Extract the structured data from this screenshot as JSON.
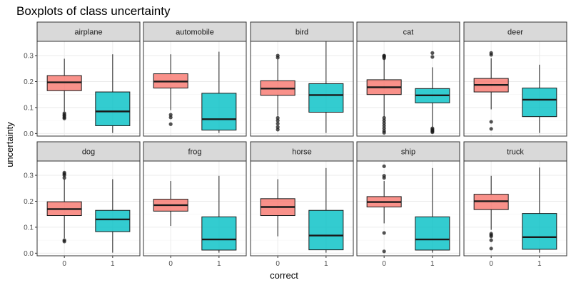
{
  "chart_data": {
    "type": "boxplot",
    "title": "Boxplots of class uncertainty",
    "xlabel": "correct",
    "ylabel": "uncertainty",
    "x_categories": [
      "0",
      "1"
    ],
    "ylim": [
      -0.01,
      0.355
    ],
    "y_ticks": [
      0.0,
      0.1,
      0.2,
      0.3
    ],
    "y_tick_labels": [
      "0.0",
      "0.1",
      "0.2",
      "0.3"
    ],
    "facet_layout": {
      "rows": 2,
      "cols": 5
    },
    "grid": true,
    "colors": {
      "0": "#F8766D",
      "1": "#00BFC4",
      "strip_fill": "#d9d9d9",
      "panel_border": "#333333",
      "grid_major": "#ebebeb",
      "median": "#1a1a1a"
    },
    "facets": [
      {
        "name": "airplane",
        "boxes": [
          {
            "x": "0",
            "whisker_low": 0.085,
            "q1": 0.165,
            "median": 0.197,
            "q3": 0.223,
            "whisker_high": 0.288,
            "outliers": [
              0.078,
              0.072,
              0.068,
              0.062,
              0.058
            ]
          },
          {
            "x": "1",
            "whisker_low": 0.002,
            "q1": 0.03,
            "median": 0.085,
            "q3": 0.16,
            "whisker_high": 0.305,
            "outliers": []
          }
        ]
      },
      {
        "name": "automobile",
        "boxes": [
          {
            "x": "0",
            "whisker_low": 0.09,
            "q1": 0.175,
            "median": 0.2,
            "q3": 0.23,
            "whisker_high": 0.305,
            "outliers": [
              0.072,
              0.062,
              0.036
            ]
          },
          {
            "x": "1",
            "whisker_low": 0.002,
            "q1": 0.013,
            "median": 0.055,
            "q3": 0.155,
            "whisker_high": 0.315,
            "outliers": []
          }
        ]
      },
      {
        "name": "bird",
        "boxes": [
          {
            "x": "0",
            "whisker_low": 0.068,
            "q1": 0.147,
            "median": 0.173,
            "q3": 0.203,
            "whisker_high": 0.285,
            "outliers": [
              0.3,
              0.292,
              0.06,
              0.05,
              0.038,
              0.025,
              0.015
            ]
          },
          {
            "x": "1",
            "whisker_low": 0.002,
            "q1": 0.082,
            "median": 0.148,
            "q3": 0.192,
            "whisker_high": 0.355,
            "outliers": []
          }
        ]
      },
      {
        "name": "cat",
        "boxes": [
          {
            "x": "0",
            "whisker_low": 0.065,
            "q1": 0.15,
            "median": 0.178,
            "q3": 0.207,
            "whisker_high": 0.29,
            "outliers": [
              0.3,
              0.298,
              0.295,
              0.29,
              0.06,
              0.05,
              0.04,
              0.03,
              0.02,
              0.01,
              0.003
            ]
          },
          {
            "x": "1",
            "whisker_low": 0.025,
            "q1": 0.118,
            "median": 0.147,
            "q3": 0.173,
            "whisker_high": 0.255,
            "outliers": [
              0.31,
              0.295,
              0.02,
              0.015,
              0.012,
              0.008,
              0.005
            ]
          }
        ]
      },
      {
        "name": "deer",
        "boxes": [
          {
            "x": "0",
            "whisker_low": 0.093,
            "q1": 0.16,
            "median": 0.187,
            "q3": 0.212,
            "whisker_high": 0.29,
            "outliers": [
              0.31,
              0.303,
              0.045,
              0.018
            ]
          },
          {
            "x": "1",
            "whisker_low": 0.002,
            "q1": 0.065,
            "median": 0.13,
            "q3": 0.175,
            "whisker_high": 0.265,
            "outliers": []
          }
        ]
      },
      {
        "name": "dog",
        "boxes": [
          {
            "x": "0",
            "whisker_low": 0.058,
            "q1": 0.145,
            "median": 0.17,
            "q3": 0.198,
            "whisker_high": 0.285,
            "outliers": [
              0.31,
              0.305,
              0.3,
              0.29,
              0.05,
              0.045
            ]
          },
          {
            "x": "1",
            "whisker_low": 0.002,
            "q1": 0.083,
            "median": 0.13,
            "q3": 0.165,
            "whisker_high": 0.285,
            "outliers": []
          }
        ]
      },
      {
        "name": "frog",
        "boxes": [
          {
            "x": "0",
            "whisker_low": 0.105,
            "q1": 0.162,
            "median": 0.185,
            "q3": 0.208,
            "whisker_high": 0.278,
            "outliers": []
          },
          {
            "x": "1",
            "whisker_low": 0.002,
            "q1": 0.012,
            "median": 0.053,
            "q3": 0.14,
            "whisker_high": 0.298,
            "outliers": []
          }
        ]
      },
      {
        "name": "horse",
        "boxes": [
          {
            "x": "0",
            "whisker_low": 0.065,
            "q1": 0.145,
            "median": 0.178,
            "q3": 0.21,
            "whisker_high": 0.285,
            "outliers": []
          },
          {
            "x": "1",
            "whisker_low": 0.002,
            "q1": 0.013,
            "median": 0.068,
            "q3": 0.165,
            "whisker_high": 0.328,
            "outliers": []
          }
        ]
      },
      {
        "name": "ship",
        "boxes": [
          {
            "x": "0",
            "whisker_low": 0.115,
            "q1": 0.178,
            "median": 0.197,
            "q3": 0.218,
            "whisker_high": 0.278,
            "outliers": [
              0.335,
              0.298,
              0.29,
              0.078,
              0.007
            ]
          },
          {
            "x": "1",
            "whisker_low": 0.002,
            "q1": 0.012,
            "median": 0.053,
            "q3": 0.14,
            "whisker_high": 0.328,
            "outliers": []
          }
        ]
      },
      {
        "name": "truck",
        "boxes": [
          {
            "x": "0",
            "whisker_low": 0.09,
            "q1": 0.168,
            "median": 0.2,
            "q3": 0.227,
            "whisker_high": 0.298,
            "outliers": [
              0.075,
              0.07,
              0.065,
              0.05,
              0.018
            ]
          },
          {
            "x": "1",
            "whisker_low": 0.002,
            "q1": 0.015,
            "median": 0.062,
            "q3": 0.153,
            "whisker_high": 0.33,
            "outliers": []
          }
        ]
      }
    ]
  }
}
